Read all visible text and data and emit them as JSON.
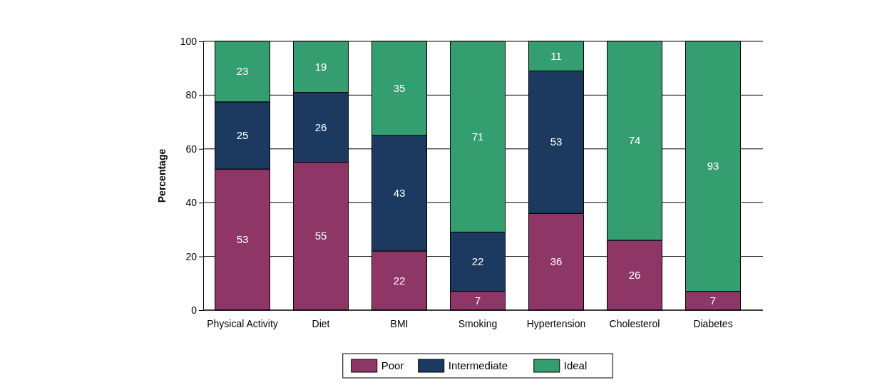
{
  "chart_data": {
    "type": "bar",
    "stacked": true,
    "ylabel": "Percentage",
    "categories": [
      "Physical Activity",
      "Diet",
      "BMI",
      "Smoking",
      "Hypertension",
      "Cholesterol",
      "Diabetes"
    ],
    "series": [
      {
        "name": "Poor",
        "color": "#8e3766",
        "values": [
          52.5,
          55,
          22,
          7,
          36,
          26,
          7
        ],
        "value_labels": [
          "53",
          "55",
          "22",
          "7",
          "36",
          "26",
          "7"
        ]
      },
      {
        "name": "Intermediate",
        "color": "#1c3a60",
        "values": [
          25,
          26,
          43,
          22,
          53,
          null,
          null
        ],
        "value_labels": [
          "25",
          "26",
          "43",
          "22",
          "53",
          null,
          null
        ]
      },
      {
        "name": "Ideal",
        "color": "#349e70",
        "values": [
          22.5,
          19,
          35,
          71,
          11,
          74,
          93
        ],
        "value_labels": [
          "23",
          "19",
          "35",
          "71",
          "11",
          "74",
          "93"
        ]
      }
    ],
    "ylim": [
      0,
      100
    ],
    "yticks": [
      0,
      20,
      40,
      60,
      80,
      100
    ],
    "grid": "y",
    "legend": "bottom"
  }
}
